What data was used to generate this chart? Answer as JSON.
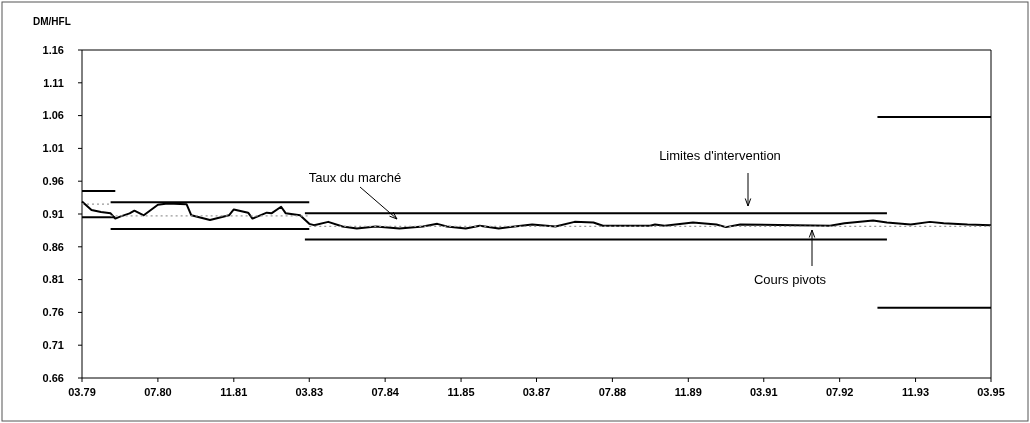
{
  "chart_data": {
    "type": "line",
    "ylabel": "DM/HFL",
    "xlim": [
      "1979-03",
      "1995-03"
    ],
    "xticks": [
      {
        "value": "1979-03",
        "label": "03.79"
      },
      {
        "value": "1980-07",
        "label": "07.80"
      },
      {
        "value": "1981-11",
        "label": "11.81"
      },
      {
        "value": "1983-03",
        "label": "03.83"
      },
      {
        "value": "1984-07",
        "label": "07.84"
      },
      {
        "value": "1985-11",
        "label": "11.85"
      },
      {
        "value": "1987-03",
        "label": "03.87"
      },
      {
        "value": "1988-07",
        "label": "07.88"
      },
      {
        "value": "1989-11",
        "label": "11.89"
      },
      {
        "value": "1991-03",
        "label": "03.91"
      },
      {
        "value": "1992-07",
        "label": "07.92"
      },
      {
        "value": "1993-11",
        "label": "11.93"
      },
      {
        "value": "1995-03",
        "label": "03.95"
      }
    ],
    "ylim": [
      0.66,
      1.16
    ],
    "yticks": [
      0.66,
      0.71,
      0.76,
      0.81,
      0.86,
      0.91,
      0.96,
      1.01,
      1.06,
      1.11,
      1.16
    ],
    "grid": false,
    "series": [
      {
        "color": "#000000",
        "line_style": "solid",
        "x": [
          "1979-03",
          "1979-05",
          "1979-07",
          "1979-09",
          "1979-10",
          "1979-11",
          "1980-01",
          "1980-02",
          "1980-04",
          "1980-07",
          "1980-09",
          "1981-01",
          "1981-02",
          "1981-06",
          "1981-10",
          "1981-11",
          "1982-02",
          "1982-03",
          "1982-06",
          "1982-07",
          "1982-09",
          "1982-10",
          "1983-01",
          "1983-03",
          "1983-04",
          "1983-07",
          "1983-10",
          "1984-01",
          "1984-05",
          "1984-10",
          "1985-03",
          "1985-06",
          "1985-08",
          "1985-12",
          "1986-03",
          "1986-07",
          "1987-02",
          "1987-07",
          "1987-11",
          "1988-03",
          "1988-05",
          "1989-03",
          "1989-04",
          "1989-06",
          "1989-12",
          "1990-05",
          "1990-07",
          "1990-10",
          "1992-05",
          "1992-08",
          "1993-02",
          "1993-05",
          "1993-10",
          "1994-02",
          "1994-05",
          "1994-10",
          "1995-03"
        ],
        "values": [
          0.929,
          0.916,
          0.913,
          0.911,
          0.903,
          0.906,
          0.911,
          0.915,
          0.908,
          0.924,
          0.926,
          0.925,
          0.908,
          0.901,
          0.908,
          0.917,
          0.912,
          0.903,
          0.912,
          0.911,
          0.921,
          0.911,
          0.908,
          0.895,
          0.893,
          0.898,
          0.891,
          0.888,
          0.891,
          0.888,
          0.891,
          0.895,
          0.891,
          0.888,
          0.892,
          0.888,
          0.894,
          0.891,
          0.898,
          0.897,
          0.892,
          0.892,
          0.894,
          0.892,
          0.897,
          0.894,
          0.89,
          0.894,
          0.892,
          0.896,
          0.9,
          0.897,
          0.894,
          0.898,
          0.896,
          0.894,
          0.893
        ]
      },
      {
        "color": "#000000",
        "line_style": "solid",
        "x": [
          "1979-03",
          "1979-10"
        ],
        "values": [
          0.945,
          0.945
        ]
      },
      {
        "color": "#000000",
        "line_style": "solid",
        "x": [
          "1979-03",
          "1979-10"
        ],
        "values": [
          0.905,
          0.905
        ]
      },
      {
        "color": "#000000",
        "line_style": "solid",
        "x": [
          "1979-09",
          "1983-03"
        ],
        "values": [
          0.928,
          0.928
        ]
      },
      {
        "color": "#000000",
        "line_style": "solid",
        "x": [
          "1979-09",
          "1983-03"
        ],
        "values": [
          0.887,
          0.887
        ]
      },
      {
        "color": "#000000",
        "line_style": "solid",
        "x": [
          "1983-02",
          "1993-05"
        ],
        "values": [
          0.911,
          0.911
        ]
      },
      {
        "color": "#000000",
        "line_style": "solid",
        "x": [
          "1983-02",
          "1993-05"
        ],
        "values": [
          0.871,
          0.871
        ]
      },
      {
        "color": "#000000",
        "line_style": "solid",
        "x": [
          "1993-03",
          "1995-03"
        ],
        "values": [
          1.058,
          1.058
        ]
      },
      {
        "color": "#000000",
        "line_style": "solid",
        "x": [
          "1993-03",
          "1995-03"
        ],
        "values": [
          0.767,
          0.767
        ]
      },
      {
        "color": "#999999",
        "line_style": "dotted",
        "x": [
          "1979-03",
          "1979-09"
        ],
        "values": [
          0.925,
          0.925
        ]
      },
      {
        "color": "#999999",
        "line_style": "dotted",
        "x": [
          "1979-09",
          "1983-03"
        ],
        "values": [
          0.907,
          0.907
        ]
      },
      {
        "color": "#999999",
        "line_style": "dotted",
        "x": [
          "1983-03",
          "1995-03"
        ],
        "values": [
          0.891,
          0.891
        ]
      }
    ],
    "annotations": [
      "Taux du marché",
      "Limites d'intervention",
      "Cours pivots"
    ]
  }
}
